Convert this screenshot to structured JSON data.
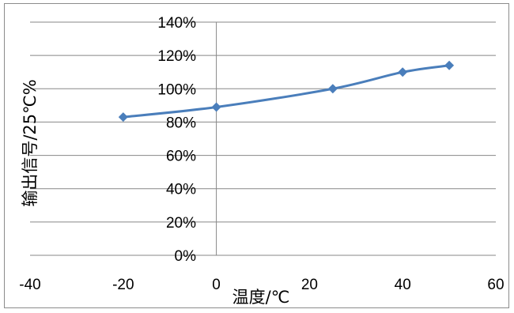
{
  "chart_data": {
    "type": "line",
    "xlabel": "温度/℃",
    "ylabel": "输出信号/25℃%",
    "xlim": [
      -40,
      60
    ],
    "ylim": [
      0,
      140
    ],
    "x_ticks": [
      "-40",
      "-20",
      "0",
      "20",
      "40",
      "60"
    ],
    "y_ticks": [
      "0%",
      "20%",
      "40%",
      "60%",
      "80%",
      "100%",
      "120%",
      "140%"
    ],
    "grid": "horizontal",
    "legend": "none",
    "series": [
      {
        "x": [
          -20,
          0,
          25,
          40,
          50
        ],
        "y": [
          83,
          89,
          100,
          110,
          114
        ]
      }
    ],
    "colors": {
      "line": "#4a7ebb",
      "grid": "#878787",
      "axis": "#878787"
    }
  }
}
